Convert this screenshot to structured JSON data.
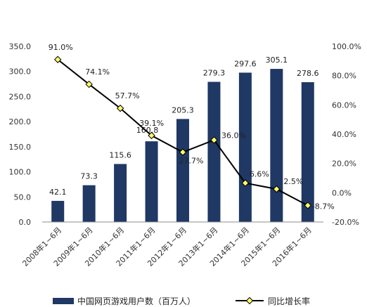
{
  "chart_data": {
    "type": "bar",
    "categories": [
      "2008年1~6月",
      "2009年1~6月",
      "2010年1~6月",
      "2011年1~6月",
      "2012年1~6月",
      "2013年1~6月",
      "2014年1~6月",
      "2015年1~6月",
      "2016年1~6月"
    ],
    "series": [
      {
        "name": "中国网页游戏用户数（百万人）",
        "type": "bar",
        "axis": "left",
        "color": "#1f3864",
        "values": [
          42.1,
          73.3,
          115.6,
          160.8,
          205.3,
          279.3,
          297.6,
          305.1,
          278.6
        ],
        "labels": [
          "42.1",
          "73.3",
          "115.6",
          "160.8",
          "205.3",
          "279.3",
          "297.6",
          "305.1",
          "278.6"
        ]
      },
      {
        "name": "同比增长率",
        "type": "line",
        "axis": "right",
        "color": "#000000",
        "marker_color": "#ffff66",
        "values": [
          91.0,
          74.1,
          57.7,
          39.1,
          27.7,
          36.0,
          6.6,
          2.5,
          -8.7
        ],
        "labels": [
          "91.0%",
          "74.1%",
          "57.7%",
          "39.1%",
          "27.7%",
          "36.0%",
          "6.6%",
          "2.5%",
          "-8.7%"
        ]
      }
    ],
    "y_left": {
      "ylim": [
        0,
        350
      ],
      "ticks": [
        "0.0",
        "50.0",
        "100.0",
        "150.0",
        "200.0",
        "250.0",
        "300.0",
        "350.0"
      ]
    },
    "y_right": {
      "ylim": [
        -20,
        100
      ],
      "ticks": [
        "-20.0%",
        "0.0%",
        "20.0%",
        "40.0%",
        "60.0%",
        "80.0%",
        "100.0%"
      ]
    },
    "grid": false,
    "legend": "bottom"
  }
}
